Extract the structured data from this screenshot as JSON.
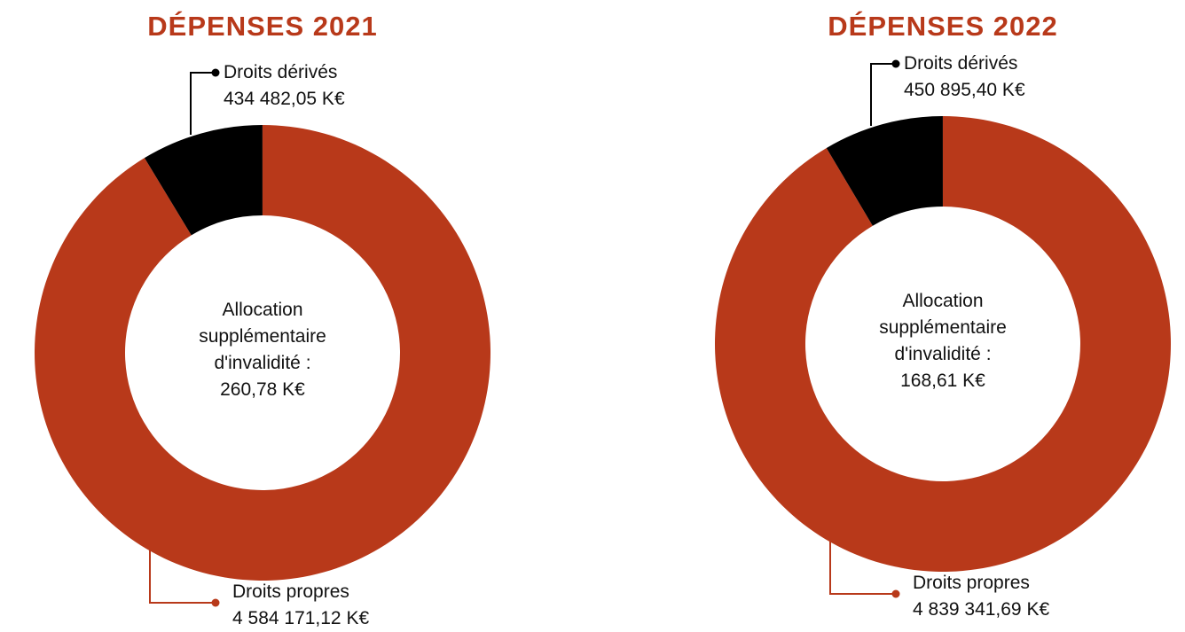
{
  "chart_data": [
    {
      "type": "pie",
      "title": "DÉPENSES 2021",
      "categories": [
        "Droits propres",
        "Droits dérivés",
        "Allocation supplémentaire d'invalidité :"
      ],
      "values": [
        4584171.12,
        434482.05,
        260.78
      ],
      "value_labels": [
        "4 584 171,12 K€",
        "434 482,05 K€",
        "260,78 K€"
      ],
      "colors": [
        "#b8391a",
        "#000000",
        "#7a1e0c"
      ]
    },
    {
      "type": "pie",
      "title": "DÉPENSES 2022",
      "categories": [
        "Droits propres",
        "Droits dérivés",
        "Allocation supplémentaire d'invalidité :"
      ],
      "values": [
        4839341.69,
        450895.4,
        168.61
      ],
      "value_labels": [
        "4 839 341,69 K€",
        "450 895,40 K€",
        "168,61 K€"
      ],
      "colors": [
        "#b8391a",
        "#000000",
        "#7a1e0c"
      ]
    }
  ]
}
